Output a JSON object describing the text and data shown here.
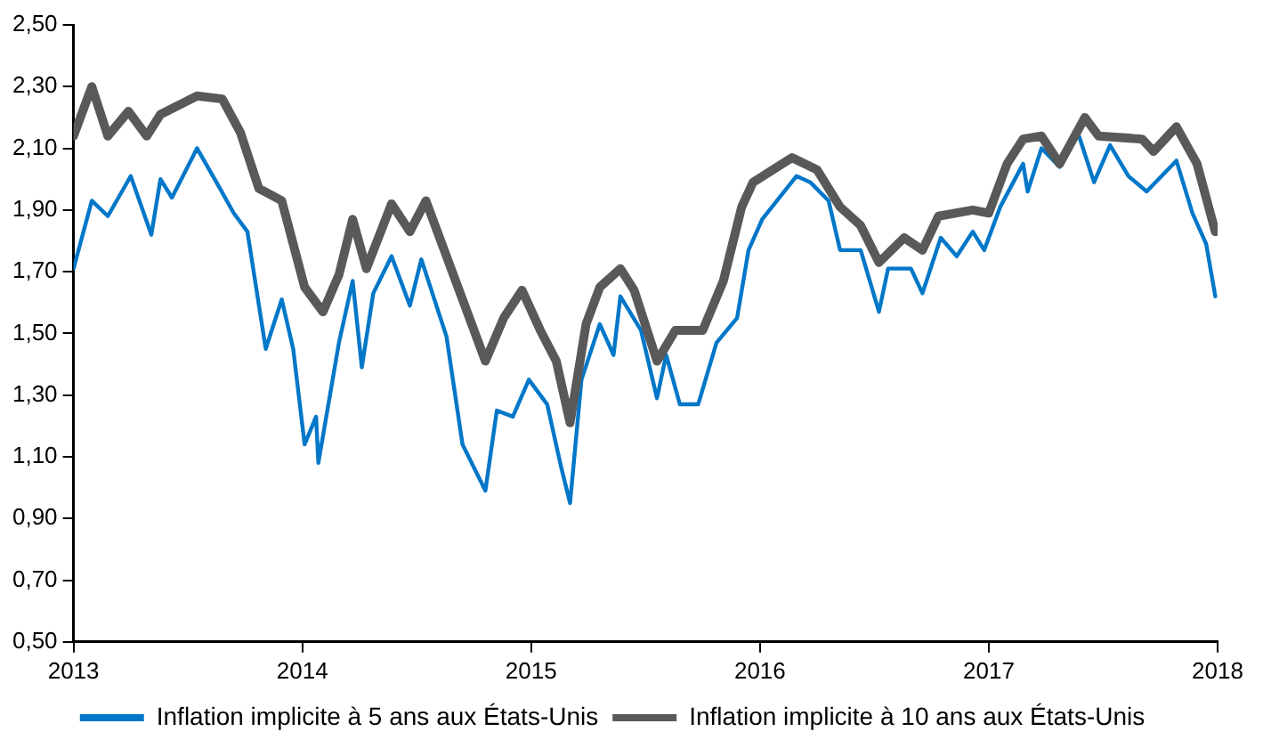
{
  "chart_data": {
    "type": "line",
    "legend": "bottom",
    "grid": false,
    "marker": "none",
    "line_style": "solid",
    "xlim": [
      2013,
      2018
    ],
    "xticks": [
      2013,
      2014,
      2015,
      2016,
      2017,
      2018
    ],
    "ylim": [
      0.5,
      2.5
    ],
    "yticks": [
      {
        "value": 0.5,
        "label": "0,50"
      },
      {
        "value": 0.7,
        "label": "0,70"
      },
      {
        "value": 0.9,
        "label": "0,90"
      },
      {
        "value": 1.1,
        "label": "1,10"
      },
      {
        "value": 1.3,
        "label": "1,30"
      },
      {
        "value": 1.5,
        "label": "1,50"
      },
      {
        "value": 1.7,
        "label": "1,70"
      },
      {
        "value": 1.9,
        "label": "1,90"
      },
      {
        "value": 2.1,
        "label": "2,10"
      },
      {
        "value": 2.3,
        "label": "2,30"
      },
      {
        "value": 2.5,
        "label": "2,50"
      }
    ],
    "series": [
      {
        "name": "Inflation implicite à 5 ans aux États-Unis",
        "color": "#0077c8",
        "x": [
          2013.0,
          2013.08,
          2013.15,
          2013.25,
          2013.34,
          2013.38,
          2013.43,
          2013.54,
          2013.64,
          2013.7,
          2013.76,
          2013.84,
          2013.91,
          2013.96,
          2014.01,
          2014.06,
          2014.07,
          2014.16,
          2014.22,
          2014.26,
          2014.31,
          2014.39,
          2014.47,
          2014.52,
          2014.63,
          2014.7,
          2014.8,
          2014.85,
          2014.92,
          2014.99,
          2015.07,
          2015.13,
          2015.17,
          2015.22,
          2015.3,
          2015.36,
          2015.39,
          2015.48,
          2015.55,
          2015.59,
          2015.65,
          2015.73,
          2015.81,
          2015.9,
          2015.95,
          2016.01,
          2016.16,
          2016.22,
          2016.3,
          2016.35,
          2016.44,
          2016.52,
          2016.56,
          2016.66,
          2016.71,
          2016.79,
          2016.86,
          2016.93,
          2016.98,
          2017.05,
          2017.15,
          2017.17,
          2017.23,
          2017.31,
          2017.39,
          2017.46,
          2017.53,
          2017.61,
          2017.69,
          2017.82,
          2017.89,
          2017.95,
          2017.99
        ],
        "values": [
          1.71,
          1.93,
          1.88,
          2.01,
          1.82,
          2.0,
          1.94,
          2.1,
          1.97,
          1.89,
          1.83,
          1.45,
          1.61,
          1.45,
          1.14,
          1.23,
          1.08,
          1.47,
          1.67,
          1.39,
          1.63,
          1.75,
          1.59,
          1.74,
          1.49,
          1.14,
          0.99,
          1.25,
          1.23,
          1.35,
          1.27,
          1.07,
          0.95,
          1.35,
          1.53,
          1.43,
          1.62,
          1.51,
          1.29,
          1.43,
          1.27,
          1.27,
          1.47,
          1.55,
          1.77,
          1.87,
          2.01,
          1.99,
          1.93,
          1.77,
          1.77,
          1.57,
          1.71,
          1.71,
          1.63,
          1.81,
          1.75,
          1.83,
          1.77,
          1.91,
          2.05,
          1.96,
          2.1,
          2.04,
          2.15,
          1.99,
          2.11,
          2.01,
          1.96,
          2.06,
          1.89,
          1.79,
          1.62
        ]
      },
      {
        "name": "Inflation implicite à 10 ans aux États-Unis",
        "color": "#595959",
        "x": [
          2013.0,
          2013.08,
          2013.15,
          2013.24,
          2013.32,
          2013.38,
          2013.54,
          2013.65,
          2013.73,
          2013.81,
          2013.91,
          2014.01,
          2014.09,
          2014.16,
          2014.22,
          2014.28,
          2014.39,
          2014.47,
          2014.54,
          2014.63,
          2014.7,
          2014.8,
          2014.88,
          2014.96,
          2015.04,
          2015.11,
          2015.17,
          2015.24,
          2015.3,
          2015.39,
          2015.45,
          2015.55,
          2015.63,
          2015.75,
          2015.84,
          2015.92,
          2015.97,
          2016.14,
          2016.25,
          2016.35,
          2016.44,
          2016.52,
          2016.63,
          2016.71,
          2016.78,
          2016.93,
          2017.0,
          2017.08,
          2017.15,
          2017.23,
          2017.31,
          2017.42,
          2017.48,
          2017.67,
          2017.72,
          2017.82,
          2017.91,
          2017.99
        ],
        "values": [
          2.14,
          2.3,
          2.14,
          2.22,
          2.14,
          2.21,
          2.27,
          2.26,
          2.15,
          1.97,
          1.93,
          1.65,
          1.57,
          1.69,
          1.87,
          1.71,
          1.92,
          1.83,
          1.93,
          1.75,
          1.61,
          1.41,
          1.55,
          1.64,
          1.51,
          1.41,
          1.21,
          1.53,
          1.65,
          1.71,
          1.64,
          1.41,
          1.51,
          1.51,
          1.67,
          1.91,
          1.99,
          2.07,
          2.03,
          1.91,
          1.85,
          1.73,
          1.81,
          1.77,
          1.88,
          1.9,
          1.89,
          2.05,
          2.13,
          2.14,
          2.05,
          2.2,
          2.14,
          2.13,
          2.09,
          2.17,
          2.05,
          1.83
        ]
      }
    ]
  }
}
